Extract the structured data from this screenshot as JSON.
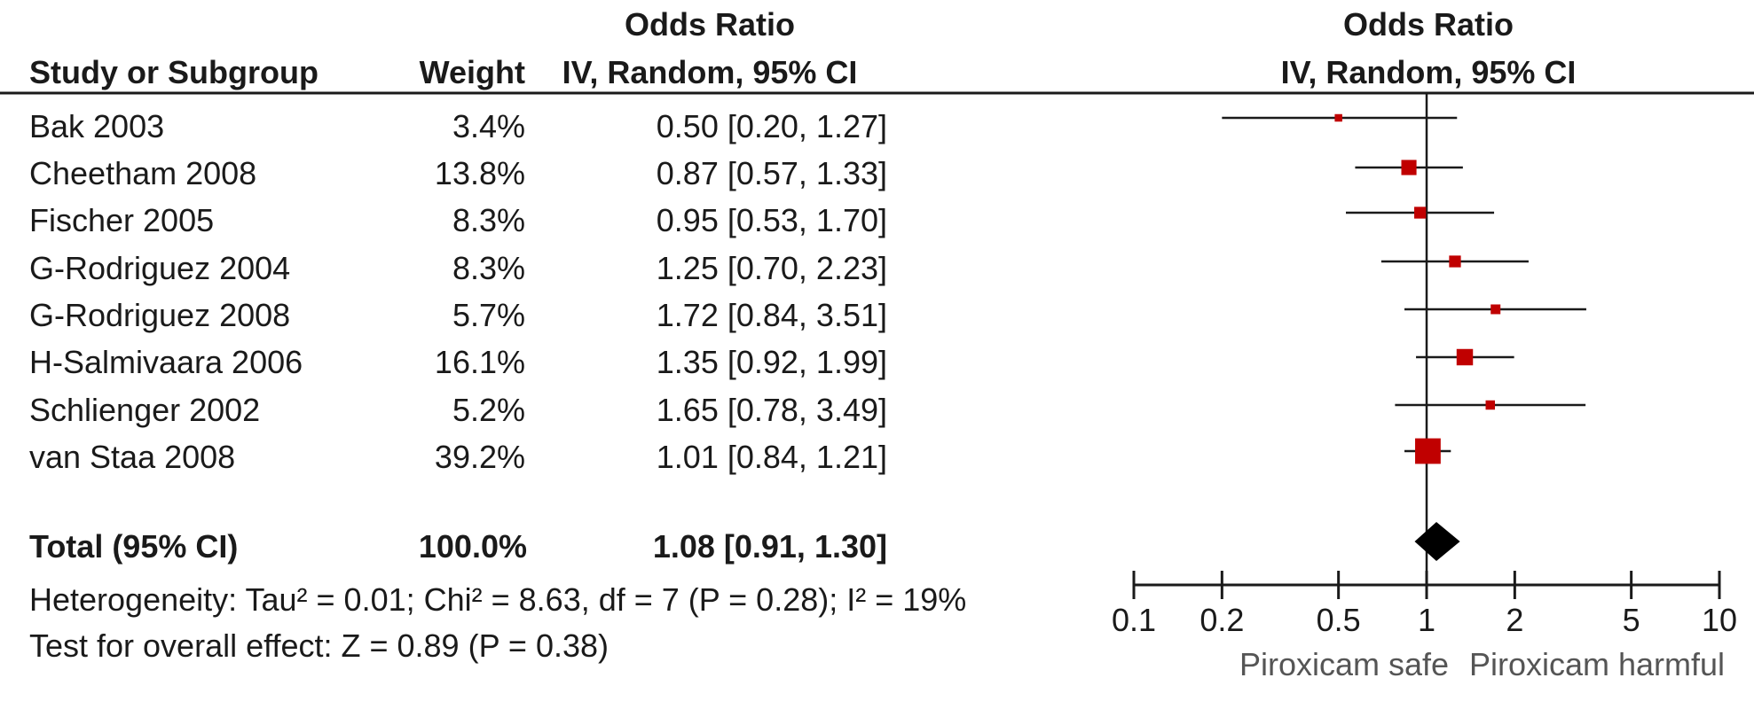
{
  "headers": {
    "study": "Study or Subgroup",
    "weight": "Weight",
    "or_group": "Odds Ratio",
    "or_method": "IV, Random, 95% CI",
    "plot_group": "Odds Ratio",
    "plot_method": "IV, Random, 95% CI"
  },
  "studies": [
    {
      "name": "Bak 2003",
      "weight_label": "3.4%",
      "ci_label": "0.50 [0.20, 1.27]"
    },
    {
      "name": "Cheetham 2008",
      "weight_label": "13.8%",
      "ci_label": "0.87 [0.57, 1.33]"
    },
    {
      "name": "Fischer 2005",
      "weight_label": "8.3%",
      "ci_label": "0.95 [0.53, 1.70]"
    },
    {
      "name": "G-Rodriguez 2004",
      "weight_label": "8.3%",
      "ci_label": "1.25 [0.70, 2.23]"
    },
    {
      "name": "G-Rodriguez 2008",
      "weight_label": "5.7%",
      "ci_label": "1.72 [0.84, 3.51]"
    },
    {
      "name": "H-Salmivaara 2006",
      "weight_label": "16.1%",
      "ci_label": "1.35 [0.92, 1.99]"
    },
    {
      "name": "Schlienger 2002",
      "weight_label": "5.2%",
      "ci_label": "1.65 [0.78, 3.49]"
    },
    {
      "name": "van Staa 2008",
      "weight_label": "39.2%",
      "ci_label": "1.01 [0.84, 1.21]"
    }
  ],
  "total": {
    "name": "Total (95% CI)",
    "weight_label": "100.0%",
    "ci_label": "1.08 [0.91, 1.30]"
  },
  "footer": {
    "heterogeneity": "Heterogeneity: Tau² = 0.01; Chi² = 8.63, df = 7 (P = 0.28); I² = 19%",
    "overall": "Test for overall effect: Z = 0.89 (P = 0.38)"
  },
  "axis_labels": {
    "left": "Piroxicam safe",
    "right": "Piroxicam harmful"
  },
  "colors": {
    "marker": "#c00000",
    "diamond": "#000000",
    "line": "#1a1a1a"
  },
  "chart_data": {
    "type": "forest",
    "x_scale": "log",
    "xlim": [
      0.1,
      10
    ],
    "x_ticks": [
      0.1,
      0.2,
      0.5,
      1,
      2,
      5,
      10
    ],
    "x_tick_labels": [
      "0.1",
      "0.2",
      "0.5",
      "1",
      "2",
      "5",
      "10"
    ],
    "reference_line": 1,
    "series": [
      {
        "study": "Bak 2003",
        "or": 0.5,
        "lower": 0.2,
        "upper": 1.27,
        "weight": 3.4
      },
      {
        "study": "Cheetham 2008",
        "or": 0.87,
        "lower": 0.57,
        "upper": 1.33,
        "weight": 13.8
      },
      {
        "study": "Fischer 2005",
        "or": 0.95,
        "lower": 0.53,
        "upper": 1.7,
        "weight": 8.3
      },
      {
        "study": "G-Rodriguez 2004",
        "or": 1.25,
        "lower": 0.7,
        "upper": 2.23,
        "weight": 8.3
      },
      {
        "study": "G-Rodriguez 2008",
        "or": 1.72,
        "lower": 0.84,
        "upper": 3.51,
        "weight": 5.7
      },
      {
        "study": "H-Salmivaara 2006",
        "or": 1.35,
        "lower": 0.92,
        "upper": 1.99,
        "weight": 16.1
      },
      {
        "study": "Schlienger 2002",
        "or": 1.65,
        "lower": 0.78,
        "upper": 3.49,
        "weight": 5.2
      },
      {
        "study": "van Staa 2008",
        "or": 1.01,
        "lower": 0.84,
        "upper": 1.21,
        "weight": 39.2
      }
    ],
    "pooled": {
      "or": 1.08,
      "lower": 0.91,
      "upper": 1.3,
      "weight": 100.0
    }
  }
}
